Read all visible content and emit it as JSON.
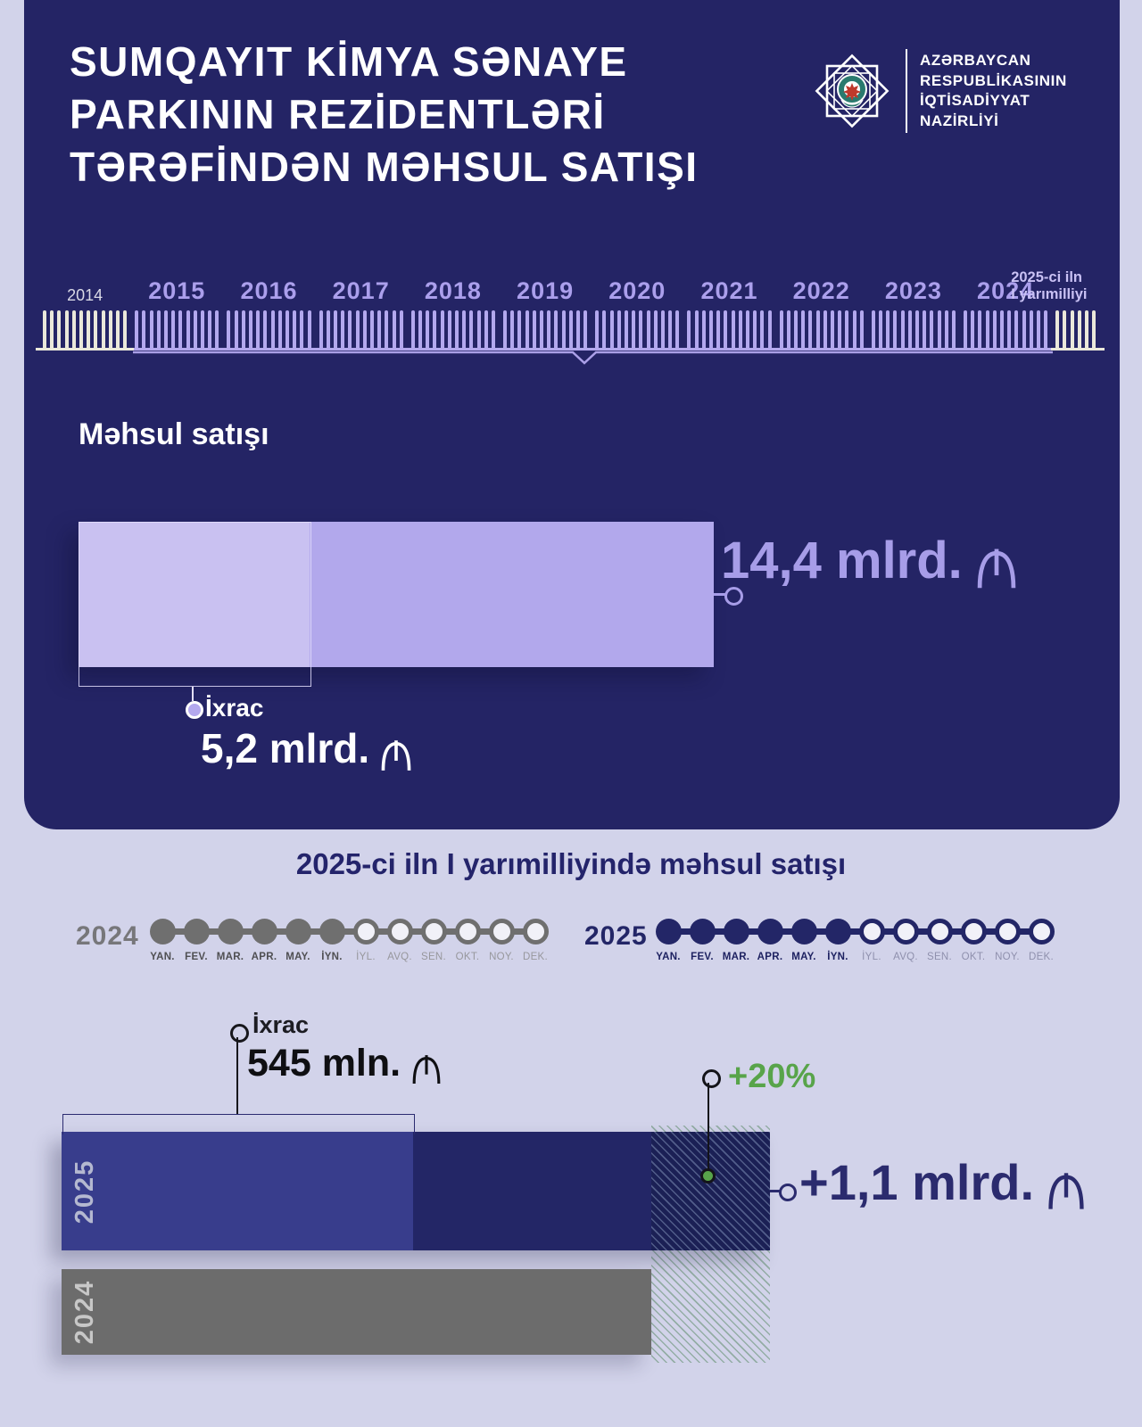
{
  "colors": {
    "card_navy": "#242465",
    "bar_purple": "#b2a8ec",
    "export_purple_light": "#c9c1f1",
    "accent_purple_text": "#a79de8",
    "bar_2025_navy": "#232666",
    "bar_2024_gray": "#6c6c6c",
    "growth_green": "#58a44a",
    "background_lavender": "#d2d3ea"
  },
  "header": {
    "title_lines": [
      "SUMQAYIT KİMYA SƏNAYE",
      "PARKININ REZİDENTLƏRİ",
      "TƏRƏFİNDƏN MƏHSUL SATIŞI"
    ],
    "ministry_lines": [
      "AZƏRBAYCAN",
      "RESPUBLİKASININ",
      "İQTİSADİYYAT",
      "NAZİRLİYİ"
    ]
  },
  "timeline": {
    "years": [
      {
        "label": "2014",
        "style": "muted",
        "ticks": 12
      },
      {
        "label": "2015",
        "style": "purple",
        "ticks": 12
      },
      {
        "label": "2016",
        "style": "purple",
        "ticks": 12
      },
      {
        "label": "2017",
        "style": "purple",
        "ticks": 12
      },
      {
        "label": "2018",
        "style": "purple",
        "ticks": 12
      },
      {
        "label": "2019",
        "style": "purple",
        "ticks": 12
      },
      {
        "label": "2020",
        "style": "purple",
        "ticks": 12
      },
      {
        "label": "2021",
        "style": "purple",
        "ticks": 12
      },
      {
        "label": "2022",
        "style": "purple",
        "ticks": 12
      },
      {
        "label": "2023",
        "style": "purple",
        "ticks": 12
      },
      {
        "label": "2024",
        "style": "purple",
        "ticks": 12
      },
      {
        "label": "2025-ci iln\nI yarımilliyi",
        "style": "half",
        "ticks": 6
      }
    ]
  },
  "sales_chart": {
    "heading": "Məhsul satışı",
    "total": "14,4 mlrd.",
    "currency_symbol": "₼",
    "export_label": "İxrac",
    "export_value": "5,2 mlrd."
  },
  "half_year_chart": {
    "subtitle": "2025-ci iln I yarımilliyində məhsul satışı",
    "months": [
      "YAN.",
      "FEV.",
      "MAR.",
      "APR.",
      "MAY.",
      "İYN.",
      "İYL.",
      "AVQ.",
      "SEN.",
      "OKT.",
      "NOY.",
      "DEK."
    ],
    "month_rows": [
      {
        "year": "2024",
        "filled_months": 6
      },
      {
        "year": "2025",
        "filled_months": 6
      }
    ],
    "export_label": "İxrac",
    "export_value": "545 mln.",
    "growth_label": "+20%",
    "total_label": "+1,1 mlrd.",
    "bar_labels": [
      "2025",
      "2024"
    ]
  },
  "chart_data": [
    {
      "type": "bar",
      "orientation": "horizontal",
      "title": "Məhsul satışı",
      "unit": "mlrd. ₼",
      "bars": [
        {
          "label": "Məhsul satışı (cəmi)",
          "value": 14.4,
          "value_label": "14,4 mlrd. ₼"
        },
        {
          "label": "İxrac",
          "value": 5.2,
          "value_label": "5,2 mlrd. ₼"
        }
      ]
    },
    {
      "type": "bar",
      "orientation": "horizontal",
      "title": "2025-ci iln I yarımilliyində məhsul satışı",
      "unit": "mlrd. ₼",
      "bars": [
        {
          "label": "2025",
          "value": 1.1,
          "value_label": "+1,1 mlrd. ₼",
          "export_value": 0.545,
          "export_label": "545 mln. ₼",
          "growth": "+20%"
        },
        {
          "label": "2024",
          "value": null
        }
      ],
      "months_marked": [
        "YAN.",
        "FEV.",
        "MAR.",
        "APR.",
        "MAY.",
        "İYN."
      ]
    }
  ]
}
